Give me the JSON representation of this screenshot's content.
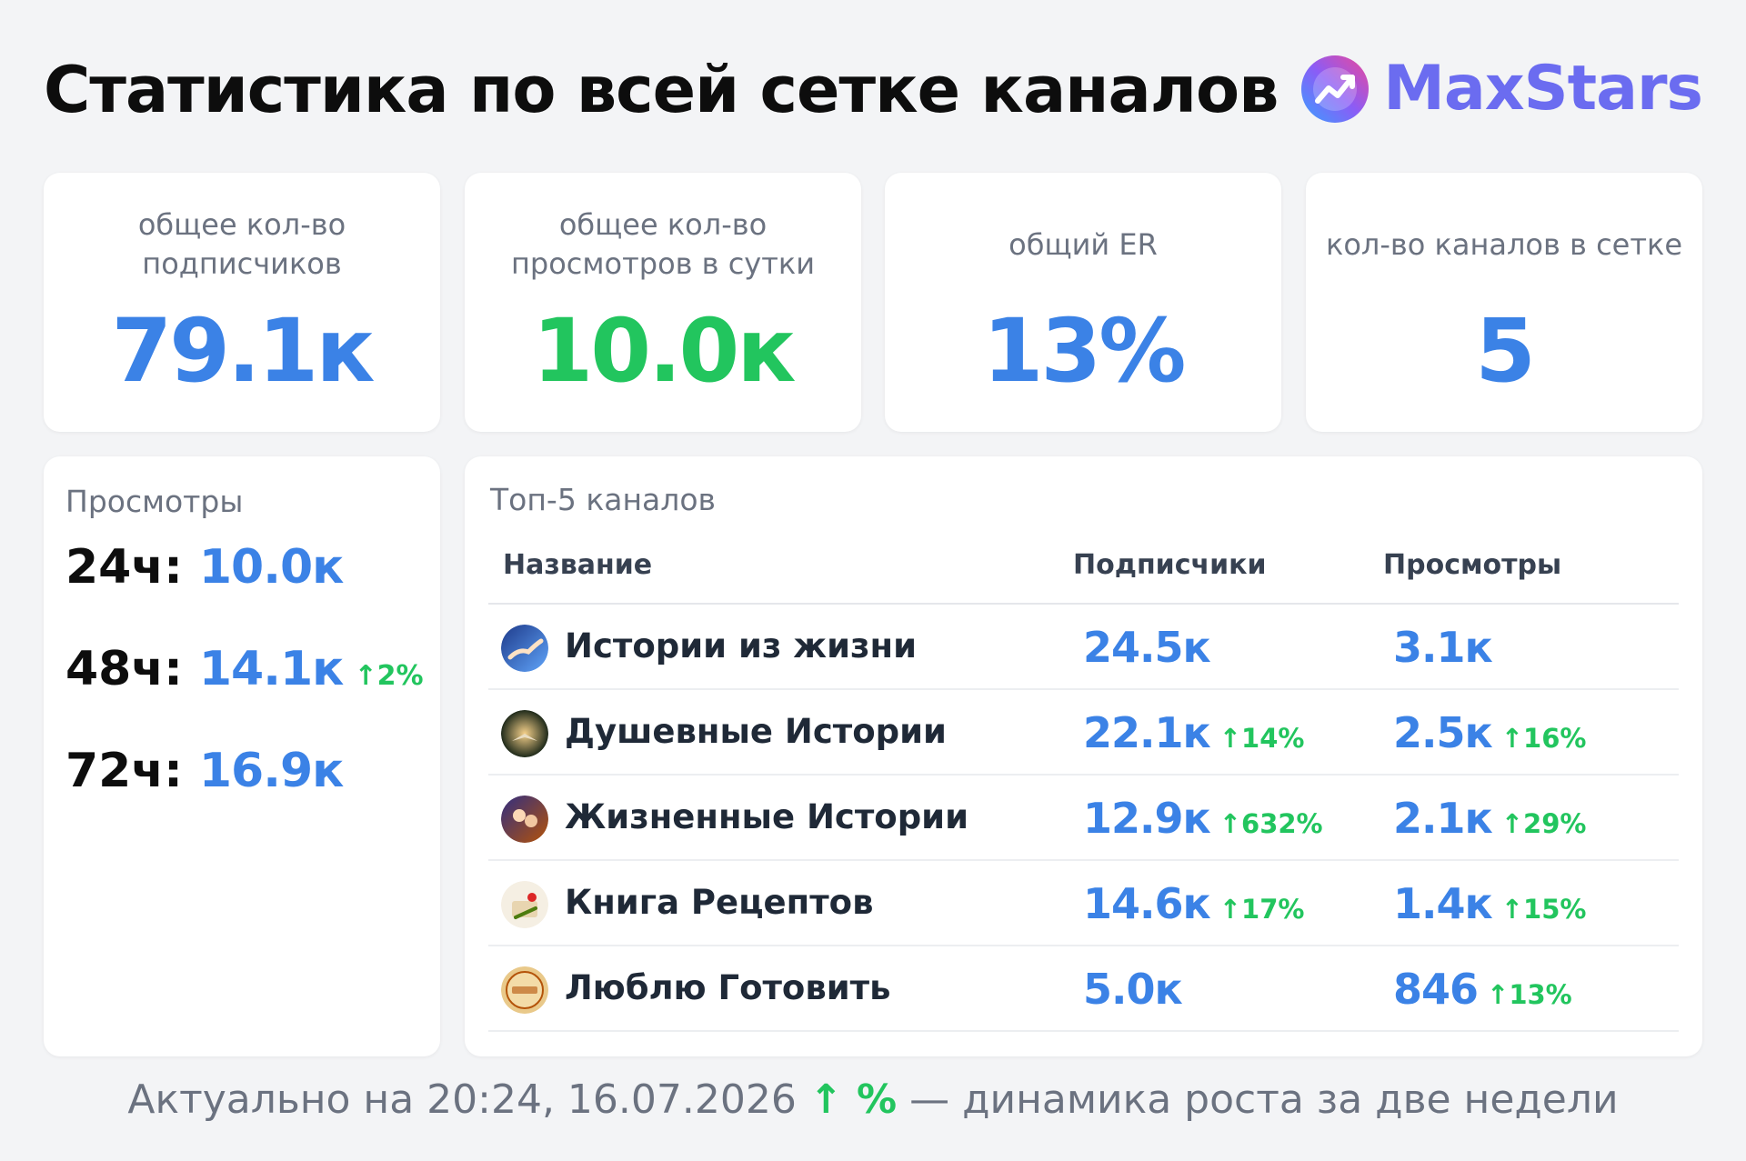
{
  "header": {
    "title": "Статистика по всей сетке каналов",
    "brand_name": "MaxStars",
    "brand_icon": "chart-growth-icon"
  },
  "colors": {
    "accent_blue": "#3b82e6",
    "accent_green": "#22c55e",
    "brand_purple": "#6b6cf0"
  },
  "stats": [
    {
      "label": "общее кол-во подписчиков",
      "value": "79.1к",
      "color": "blue"
    },
    {
      "label": "общее кол-во просмотров в сутки",
      "value": "10.0к",
      "color": "green"
    },
    {
      "label": "общий ER",
      "value": "13%",
      "color": "blue"
    },
    {
      "label": "кол-во каналов в сетке",
      "value": "5",
      "color": "blue"
    }
  ],
  "views_panel": {
    "title": "Просмотры",
    "rows": [
      {
        "period": "24ч:",
        "value": "10.0к",
        "growth": ""
      },
      {
        "period": "48ч:",
        "value": "14.1к",
        "growth": "↑2%"
      },
      {
        "period": "72ч:",
        "value": "16.9к",
        "growth": ""
      }
    ]
  },
  "top_channels": {
    "title": "Топ-5 каналов",
    "columns": [
      "Название",
      "Подписчики",
      "Просмотры"
    ],
    "rows": [
      {
        "name": "Истории из жизни",
        "subs": "24.5к",
        "subs_growth": "",
        "views": "3.1к",
        "views_growth": ""
      },
      {
        "name": "Душевные Истории",
        "subs": "22.1к",
        "subs_growth": "↑14%",
        "views": "2.5к",
        "views_growth": "↑16%"
      },
      {
        "name": "Жизненные Истории",
        "subs": "12.9к",
        "subs_growth": "↑632%",
        "views": "2.1к",
        "views_growth": "↑29%"
      },
      {
        "name": "Книга Рецептов",
        "subs": "14.6к",
        "subs_growth": "↑17%",
        "views": "1.4к",
        "views_growth": "↑15%"
      },
      {
        "name": "Люблю Готовить",
        "subs": "5.0к",
        "subs_growth": "",
        "views": "846",
        "views_growth": "↑13%"
      }
    ]
  },
  "footer": {
    "prefix": "Актуально на 20:24, 16.07.2026",
    "legend": "↑ %",
    "suffix": "— динамика роста за две недели"
  }
}
